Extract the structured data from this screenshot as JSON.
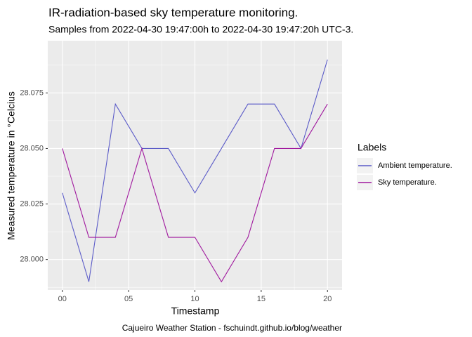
{
  "chart_data": {
    "type": "line",
    "title": "IR-radiation-based sky temperature monitoring.",
    "subtitle": "Samples from 2022-04-30 19:47:00h to 2022-04-30 19:47:20h UTC-3.",
    "x_label": "Timestamp",
    "y_label": "Measured temperature in °Celcius",
    "caption": "Cajueiro Weather Station - fschuindt.github.io/blog/weather",
    "legend_title": "Labels",
    "legend_position": "right",
    "grid": true,
    "x": [
      0,
      2,
      4,
      6,
      8,
      10,
      12,
      14,
      16,
      18,
      20
    ],
    "series": [
      {
        "name": "Ambient temperature.",
        "color": "#5b5bc8",
        "values": [
          28.03,
          27.99,
          28.07,
          28.05,
          28.05,
          28.03,
          28.05,
          28.07,
          28.07,
          28.05,
          28.09
        ]
      },
      {
        "name": "Sky temperature.",
        "color": "#a0189e",
        "values": [
          28.05,
          28.01,
          28.01,
          28.05,
          28.01,
          28.01,
          27.99,
          28.01,
          28.05,
          28.05,
          28.07
        ]
      }
    ],
    "xlim": [
      -1.1,
      21.1
    ],
    "xticks": [
      {
        "value": 0,
        "label": "00"
      },
      {
        "value": 5,
        "label": "05"
      },
      10,
      15,
      20
    ],
    "ylim": [
      27.9863,
      28.0985
    ],
    "yticks": [
      {
        "value": 28.0,
        "label": "28.000"
      },
      28.025,
      {
        "value": 28.05,
        "label": "28.050"
      },
      28.075
    ]
  }
}
